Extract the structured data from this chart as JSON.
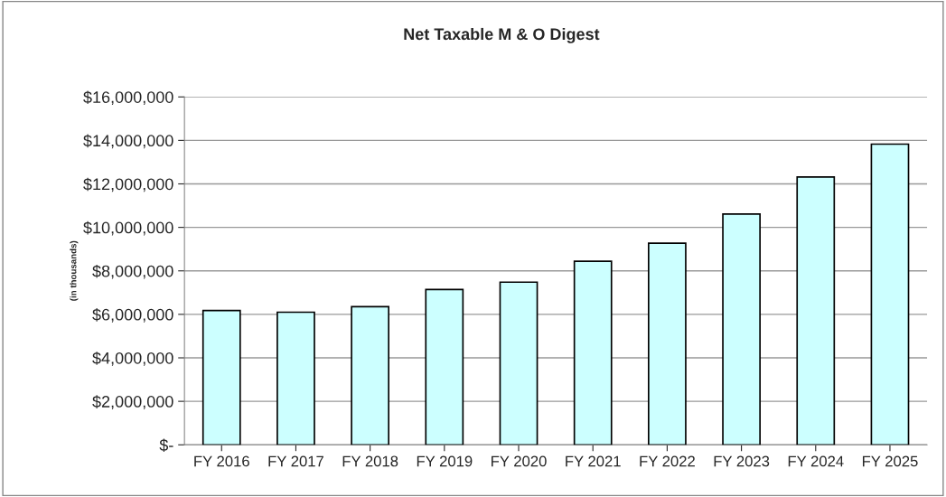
{
  "chart_data": {
    "type": "bar",
    "title": "Net Taxable M & O Digest",
    "ylabel": "(in thousands)",
    "categories": [
      "FY 2016",
      "FY 2017",
      "FY 2018",
      "FY 2019",
      "FY 2020",
      "FY 2021",
      "FY 2022",
      "FY 2023",
      "FY 2024",
      "FY 2025"
    ],
    "values": [
      6180000,
      6100000,
      6350000,
      7140000,
      7480000,
      8440000,
      9270000,
      10610000,
      12320000,
      13830000
    ],
    "color": "#ccffff",
    "ylim": [
      0,
      16000000
    ],
    "yticks": [
      {
        "value": 0,
        "label": "$-"
      },
      {
        "value": 2000000,
        "label": "$2,000,000"
      },
      {
        "value": 4000000,
        "label": "$4,000,000"
      },
      {
        "value": 6000000,
        "label": "$6,000,000"
      },
      {
        "value": 8000000,
        "label": "$8,000,000"
      },
      {
        "value": 10000000,
        "label": "$10,000,000"
      },
      {
        "value": 12000000,
        "label": "$12,000,000"
      },
      {
        "value": 14000000,
        "label": "$14,000,000"
      },
      {
        "value": 16000000,
        "label": "$16,000,000"
      }
    ],
    "grid": "y",
    "legend": false
  }
}
